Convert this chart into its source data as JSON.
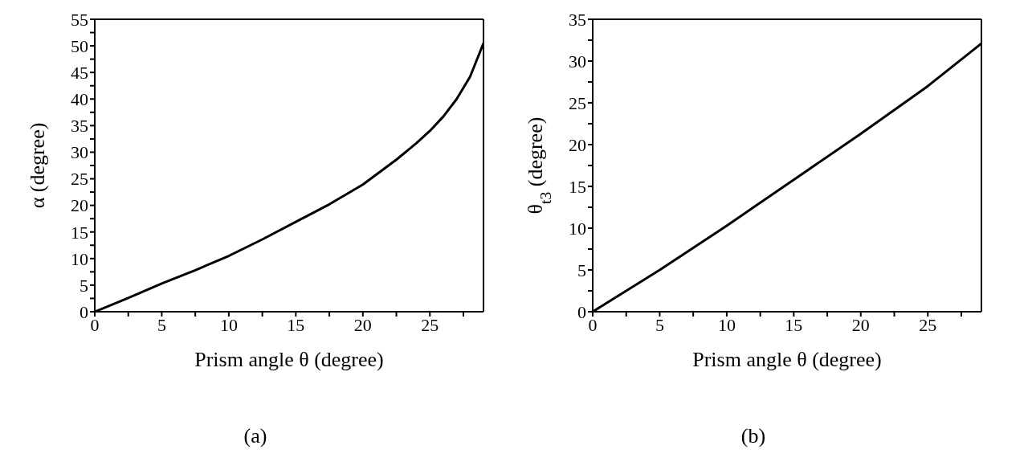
{
  "chart_data": [
    {
      "type": "line",
      "xlabel": "Prism angle θ (degree)",
      "ylabel": "α (degree)",
      "annotations": [
        "(a)"
      ],
      "x": [
        0,
        2.5,
        5,
        7.5,
        10,
        12.5,
        15,
        17.5,
        20,
        22.5,
        24,
        25,
        26,
        27,
        28,
        29
      ],
      "series": [
        {
          "color": "#000000",
          "values": [
            0,
            2.6,
            5.3,
            7.8,
            10.5,
            13.6,
            16.9,
            20.2,
            23.9,
            28.6,
            31.7,
            34.0,
            36.7,
            40.0,
            44.2,
            50.5
          ]
        }
      ],
      "xlim": [
        0,
        29
      ],
      "xticks": [
        0,
        {
          "value": 2.5,
          "label": null
        },
        5,
        {
          "value": 7.5,
          "label": null
        },
        10,
        {
          "value": 12.5,
          "label": null
        },
        15,
        {
          "value": 17.5,
          "label": null
        },
        20,
        {
          "value": 22.5,
          "label": null
        },
        25,
        {
          "value": 27.5,
          "label": null
        }
      ],
      "ylim": [
        0,
        55
      ],
      "yticks": [
        0,
        {
          "value": 2.5,
          "label": null
        },
        5,
        {
          "value": 7.5,
          "label": null
        },
        10,
        {
          "value": 12.5,
          "label": null
        },
        15,
        {
          "value": 17.5,
          "label": null
        },
        20,
        {
          "value": 22.5,
          "label": null
        },
        25,
        {
          "value": 27.5,
          "label": null
        },
        30,
        {
          "value": 32.5,
          "label": null
        },
        35,
        {
          "value": 37.5,
          "label": null
        },
        40,
        {
          "value": 42.5,
          "label": null
        },
        45,
        {
          "value": 47.5,
          "label": null
        },
        50,
        {
          "value": 52.5,
          "label": null
        },
        55
      ],
      "legend": false,
      "marker": "none",
      "line_style": "solid"
    },
    {
      "type": "line",
      "xlabel": "Prism angle θ (degree)",
      "ylabel": "θ$_{t3}$ (degree)",
      "annotations": [
        "(b)"
      ],
      "x": [
        0,
        2.5,
        5,
        10,
        15,
        20,
        25,
        29
      ],
      "series": [
        {
          "color": "#000000",
          "values": [
            0,
            2.5,
            5.0,
            10.3,
            15.8,
            21.3,
            27.0,
            32.1
          ]
        }
      ],
      "xlim": [
        0,
        29
      ],
      "xticks": [
        0,
        {
          "value": 2.5,
          "label": null
        },
        5,
        {
          "value": 7.5,
          "label": null
        },
        10,
        {
          "value": 12.5,
          "label": null
        },
        15,
        {
          "value": 17.5,
          "label": null
        },
        20,
        {
          "value": 22.5,
          "label": null
        },
        25,
        {
          "value": 27.5,
          "label": null
        }
      ],
      "ylim": [
        0,
        35
      ],
      "yticks": [
        0,
        {
          "value": 2.5,
          "label": null
        },
        5,
        {
          "value": 7.5,
          "label": null
        },
        10,
        {
          "value": 12.5,
          "label": null
        },
        15,
        {
          "value": 17.5,
          "label": null
        },
        20,
        {
          "value": 22.5,
          "label": null
        },
        25,
        {
          "value": 27.5,
          "label": null
        },
        30,
        {
          "value": 32.5,
          "label": null
        },
        35
      ],
      "legend": false,
      "marker": "none",
      "line_style": "solid"
    }
  ]
}
